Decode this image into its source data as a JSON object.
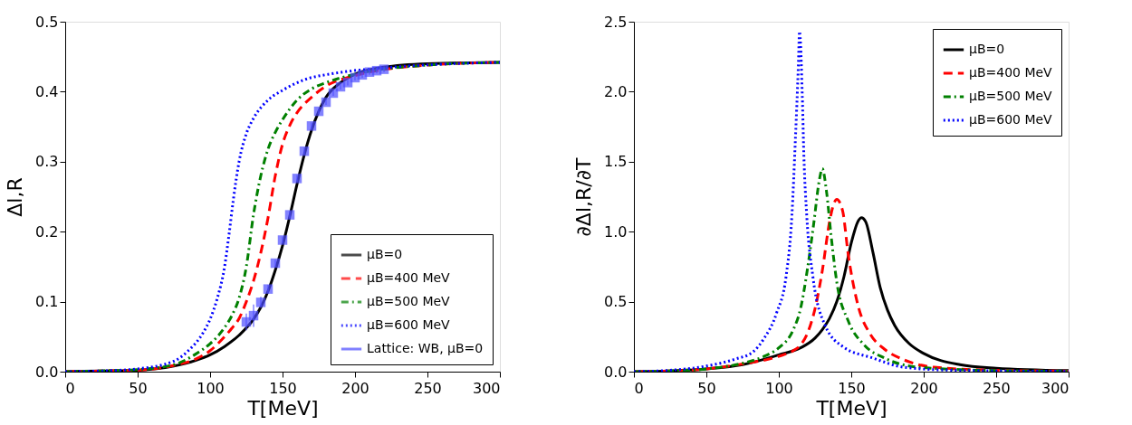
{
  "chart_data": [
    {
      "type": "line",
      "xlabel": "T[MeV]",
      "ylabel": "Δl,R",
      "grid": false,
      "legend": "bottom right",
      "xlim": [
        0,
        300
      ],
      "xticks": [
        0,
        50,
        100,
        150,
        200,
        250,
        300
      ],
      "ylim": [
        0,
        0.5
      ],
      "yticks": [
        {
          "value": 0,
          "label": "0.0"
        },
        {
          "value": 0.1,
          "label": "0.1"
        },
        {
          "value": 0.2,
          "label": "0.2"
        },
        {
          "value": 0.3,
          "label": "0.3"
        },
        {
          "value": 0.4,
          "label": "0.4"
        },
        {
          "value": 0.5,
          "label": "0.5"
        }
      ],
      "series": [
        {
          "name": "μB=0",
          "color": "#000000",
          "line_style": "solid",
          "x": [
            0,
            25,
            50,
            75,
            90,
            100,
            110,
            120,
            130,
            135,
            140,
            145,
            150,
            155,
            160,
            165,
            170,
            175,
            180,
            190,
            200,
            220,
            250,
            300
          ],
          "values": [
            0,
            0.001,
            0.002,
            0.008,
            0.016,
            0.024,
            0.036,
            0.052,
            0.075,
            0.092,
            0.115,
            0.145,
            0.18,
            0.222,
            0.268,
            0.31,
            0.345,
            0.372,
            0.392,
            0.413,
            0.425,
            0.435,
            0.44,
            0.442
          ]
        },
        {
          "name": "μB=400 MeV",
          "color": "#ff0000",
          "line_style": "dashed",
          "x": [
            0,
            25,
            50,
            75,
            90,
            100,
            110,
            115,
            120,
            125,
            130,
            135,
            140,
            145,
            150,
            155,
            160,
            170,
            180,
            200,
            250,
            300
          ],
          "values": [
            0,
            0.001,
            0.002,
            0.009,
            0.018,
            0.03,
            0.05,
            0.062,
            0.076,
            0.1,
            0.13,
            0.17,
            0.22,
            0.28,
            0.325,
            0.352,
            0.37,
            0.392,
            0.408,
            0.423,
            0.438,
            0.442
          ]
        },
        {
          "name": "μB=500 MeV",
          "color": "#008000",
          "line_style": "dashdot",
          "x": [
            0,
            25,
            50,
            75,
            90,
            100,
            105,
            110,
            115,
            120,
            125,
            130,
            135,
            140,
            145,
            150,
            160,
            170,
            180,
            200,
            250,
            300
          ],
          "values": [
            0,
            0.001,
            0.003,
            0.01,
            0.025,
            0.04,
            0.05,
            0.063,
            0.08,
            0.105,
            0.15,
            0.225,
            0.28,
            0.318,
            0.342,
            0.36,
            0.388,
            0.404,
            0.413,
            0.425,
            0.438,
            0.442
          ]
        },
        {
          "name": "μB=600 MeV",
          "color": "#0000ff",
          "line_style": "dotted",
          "x": [
            0,
            25,
            50,
            75,
            85,
            95,
            100,
            105,
            110,
            113,
            116,
            120,
            125,
            130,
            140,
            150,
            165,
            185,
            220,
            300
          ],
          "values": [
            0,
            0.001,
            0.004,
            0.015,
            0.03,
            0.055,
            0.075,
            0.105,
            0.15,
            0.195,
            0.245,
            0.3,
            0.34,
            0.362,
            0.388,
            0.402,
            0.417,
            0.426,
            0.434,
            0.442
          ]
        },
        {
          "name": "Lattice: WB, μB=0",
          "type": "scatter",
          "marker": "square",
          "color": "#4d4dff",
          "x": [
            125,
            130,
            135,
            140,
            145,
            150,
            155,
            160,
            165,
            170,
            175,
            180,
            185,
            190,
            195,
            200,
            205,
            210,
            215,
            220
          ],
          "values": [
            0.071,
            0.08,
            0.099,
            0.118,
            0.155,
            0.188,
            0.224,
            0.276,
            0.315,
            0.351,
            0.372,
            0.385,
            0.398,
            0.407,
            0.413,
            0.42,
            0.424,
            0.428,
            0.43,
            0.432
          ],
          "errors": [
            0.012,
            0.016,
            0.008,
            0.006,
            0.005,
            0.005,
            0.005,
            0.005,
            0.005,
            0.005,
            0.004,
            0.004,
            0.004,
            0.004,
            0.004,
            0.004,
            0.004,
            0.004,
            0.004,
            0.004
          ]
        }
      ]
    },
    {
      "type": "line",
      "xlabel": "T[MeV]",
      "ylabel": "∂Δl,R/∂T",
      "grid": false,
      "legend": "top right",
      "xlim": [
        0,
        300
      ],
      "xticks": [
        0,
        50,
        100,
        150,
        200,
        250,
        300
      ],
      "ylim": [
        0,
        2.5
      ],
      "yticks": [
        {
          "value": 0,
          "label": "0.0"
        },
        {
          "value": 0.5,
          "label": "0.5"
        },
        {
          "value": 1,
          "label": "1.0"
        },
        {
          "value": 1.5,
          "label": "1.5"
        },
        {
          "value": 2,
          "label": "2.0"
        },
        {
          "value": 2.5,
          "label": "2.5"
        }
      ],
      "series": [
        {
          "name": "μB=0",
          "color": "#000000",
          "line_style": "solid",
          "x": [
            0,
            25,
            50,
            75,
            100,
            115,
            125,
            130,
            135,
            140,
            145,
            150,
            155,
            157,
            160,
            165,
            170,
            175,
            180,
            190,
            200,
            225,
            250,
            300
          ],
          "values": [
            0,
            0.005,
            0.02,
            0.05,
            0.12,
            0.17,
            0.24,
            0.3,
            0.38,
            0.5,
            0.68,
            0.92,
            1.08,
            1.1,
            1.07,
            0.85,
            0.6,
            0.44,
            0.33,
            0.2,
            0.13,
            0.05,
            0.025,
            0.008
          ]
        },
        {
          "name": "μB=400 MeV",
          "color": "#ff0000",
          "line_style": "dashed",
          "x": [
            0,
            25,
            50,
            75,
            100,
            110,
            115,
            120,
            125,
            130,
            135,
            138,
            140,
            144,
            148,
            155,
            163,
            173,
            186,
            207,
            250,
            300
          ],
          "values": [
            0,
            0.005,
            0.02,
            0.055,
            0.11,
            0.15,
            0.19,
            0.28,
            0.45,
            0.72,
            1.07,
            1.2,
            1.23,
            1.15,
            0.83,
            0.46,
            0.27,
            0.16,
            0.086,
            0.032,
            0.01,
            0.004
          ]
        },
        {
          "name": "μB=500 MeV",
          "color": "#008000",
          "line_style": "dashdot",
          "x": [
            0,
            25,
            50,
            75,
            90,
            100,
            110,
            115,
            120,
            124,
            128,
            130,
            133,
            136,
            140,
            148,
            159,
            173,
            196,
            250,
            300
          ],
          "values": [
            0,
            0.005,
            0.02,
            0.06,
            0.11,
            0.17,
            0.3,
            0.45,
            0.75,
            1.05,
            1.37,
            1.45,
            1.28,
            0.98,
            0.64,
            0.36,
            0.19,
            0.097,
            0.032,
            0.008,
            0.003
          ]
        },
        {
          "name": "μB=600 MeV",
          "color": "#0000ff",
          "line_style": "dotted",
          "x": [
            0,
            25,
            50,
            70,
            82,
            90,
            98.5,
            105,
            109,
            111.4,
            113.5,
            114.3,
            116.2,
            117.3,
            119.3,
            123.5,
            132,
            144,
            165,
            186,
            220,
            300
          ],
          "values": [
            0,
            0.01,
            0.04,
            0.09,
            0.14,
            0.24,
            0.42,
            0.68,
            1.11,
            1.65,
            2.19,
            2.43,
            1.97,
            1.54,
            1.11,
            0.68,
            0.33,
            0.18,
            0.097,
            0.032,
            0.01,
            0.002
          ]
        }
      ]
    }
  ]
}
